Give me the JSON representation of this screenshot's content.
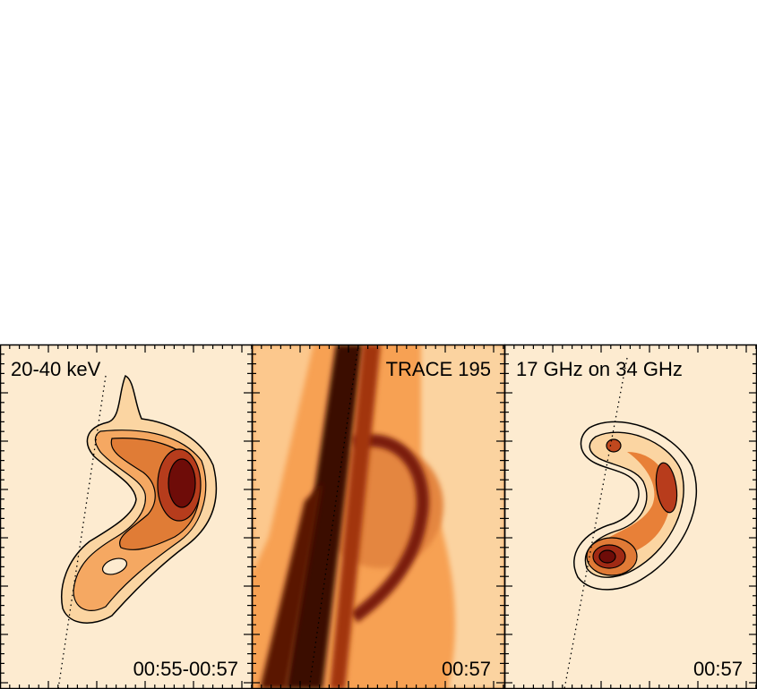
{
  "panels": [
    {
      "label": "20-40 keV",
      "time": "00:55-00:57"
    },
    {
      "label": "TRACE 195",
      "time": "00:57"
    },
    {
      "label": "17 GHz on 34 GHz",
      "time": "00:57"
    }
  ]
}
